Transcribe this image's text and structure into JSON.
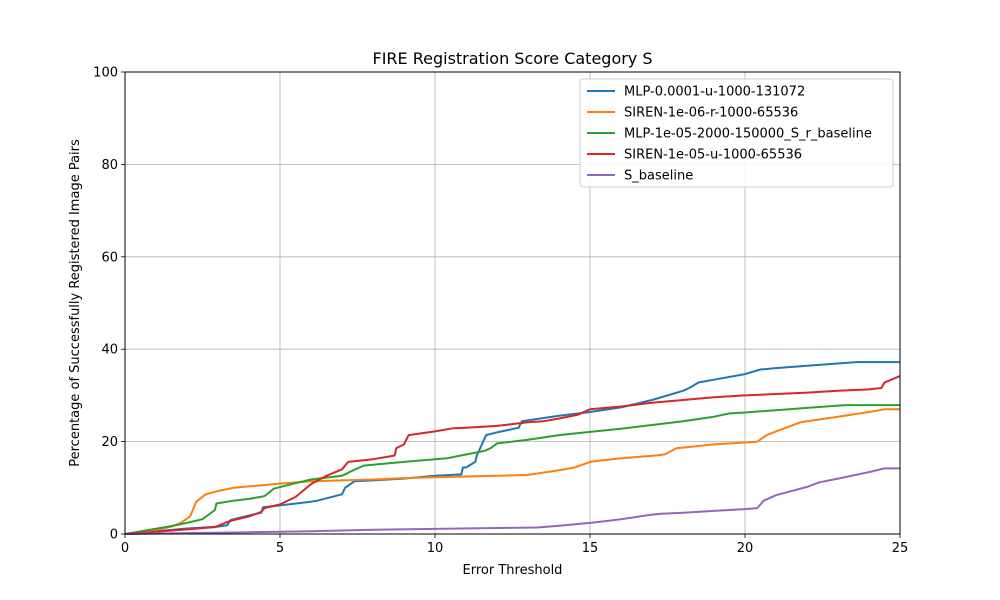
{
  "chart_data": {
    "type": "line",
    "title": "FIRE Registration Score Category S",
    "xlabel": "Error Threshold",
    "ylabel": "Percentage of Successfully Registered Image Pairs",
    "xlim": [
      0,
      25
    ],
    "ylim": [
      0,
      100
    ],
    "xticks": [
      "0",
      "5",
      "10",
      "15",
      "20",
      "25"
    ],
    "yticks": [
      "0",
      "20",
      "40",
      "60",
      "80",
      "100"
    ],
    "grid": true,
    "legend_position": "top-right",
    "series": [
      {
        "name": "MLP-0.0001-u-1000-131072",
        "color": "#1f77b4",
        "points": [
          [
            0,
            0
          ],
          [
            1,
            0.6
          ],
          [
            2,
            1.2
          ],
          [
            3,
            1.6
          ],
          [
            3.3,
            1.9
          ],
          [
            3.4,
            3.0
          ],
          [
            4,
            4.0
          ],
          [
            4.4,
            4.6
          ],
          [
            4.45,
            5.8
          ],
          [
            5,
            6.2
          ],
          [
            6,
            7.0
          ],
          [
            6.2,
            7.2
          ],
          [
            7,
            8.6
          ],
          [
            7.1,
            10.0
          ],
          [
            7.4,
            11.4
          ],
          [
            8,
            11.6
          ],
          [
            9,
            12.0
          ],
          [
            10,
            12.6
          ],
          [
            10.85,
            12.9
          ],
          [
            10.9,
            14.4
          ],
          [
            11,
            14.4
          ],
          [
            11.3,
            15.6
          ],
          [
            11.35,
            17.0
          ],
          [
            11.65,
            21.4
          ],
          [
            12,
            22.0
          ],
          [
            12.7,
            23.0
          ],
          [
            12.8,
            24.4
          ],
          [
            14,
            25.6
          ],
          [
            15,
            26.4
          ],
          [
            16,
            27.4
          ],
          [
            17,
            29.0
          ],
          [
            18,
            31.0
          ],
          [
            18.2,
            31.6
          ],
          [
            18.5,
            32.8
          ],
          [
            19,
            33.4
          ],
          [
            20,
            34.6
          ],
          [
            20.5,
            35.6
          ],
          [
            21,
            35.9
          ],
          [
            22,
            36.4
          ],
          [
            23,
            36.9
          ],
          [
            23.6,
            37.2
          ],
          [
            24,
            37.2
          ],
          [
            25,
            37.2
          ]
        ]
      },
      {
        "name": "SIREN-1e-06-r-1000-65536",
        "color": "#ff7f0e",
        "points": [
          [
            0,
            0
          ],
          [
            0.5,
            0.5
          ],
          [
            1,
            0.9
          ],
          [
            1.5,
            1.6
          ],
          [
            1.8,
            2.4
          ],
          [
            2.1,
            3.8
          ],
          [
            2.3,
            7.0
          ],
          [
            2.6,
            8.6
          ],
          [
            3,
            9.3
          ],
          [
            3.5,
            10.0
          ],
          [
            4,
            10.3
          ],
          [
            5,
            10.9
          ],
          [
            6,
            11.4
          ],
          [
            7,
            11.6
          ],
          [
            8,
            11.8
          ],
          [
            9,
            12.1
          ],
          [
            10,
            12.3
          ],
          [
            12,
            12.6
          ],
          [
            13,
            12.8
          ],
          [
            14,
            13.8
          ],
          [
            14.5,
            14.4
          ],
          [
            15,
            15.6
          ],
          [
            15.2,
            15.8
          ],
          [
            16,
            16.4
          ],
          [
            17,
            16.9
          ],
          [
            17.4,
            17.2
          ],
          [
            17.8,
            18.6
          ],
          [
            18,
            18.7
          ],
          [
            19,
            19.4
          ],
          [
            20,
            19.8
          ],
          [
            20.4,
            20.0
          ],
          [
            20.7,
            21.4
          ],
          [
            21,
            22.2
          ],
          [
            21.8,
            24.2
          ],
          [
            22,
            24.4
          ],
          [
            23,
            25.4
          ],
          [
            24,
            26.4
          ],
          [
            24.5,
            27.0
          ],
          [
            25,
            27.0
          ]
        ]
      },
      {
        "name": "MLP-1e-05-2000-150000_S_r_baseline",
        "color": "#2ca02c",
        "points": [
          [
            0,
            0
          ],
          [
            1.4,
            1.6
          ],
          [
            2,
            2.4
          ],
          [
            2.5,
            3.2
          ],
          [
            2.9,
            5.2
          ],
          [
            2.95,
            6.6
          ],
          [
            3.5,
            7.2
          ],
          [
            4,
            7.6
          ],
          [
            4.5,
            8.2
          ],
          [
            4.8,
            9.8
          ],
          [
            5.5,
            11.0
          ],
          [
            6,
            11.8
          ],
          [
            7,
            12.6
          ],
          [
            7.3,
            13.6
          ],
          [
            7.7,
            14.8
          ],
          [
            8,
            15.0
          ],
          [
            9,
            15.6
          ],
          [
            10,
            16.2
          ],
          [
            10.4,
            16.4
          ],
          [
            11,
            17.2
          ],
          [
            11.6,
            18.0
          ],
          [
            11.8,
            18.6
          ],
          [
            12,
            19.6
          ],
          [
            13,
            20.4
          ],
          [
            14,
            21.4
          ],
          [
            15,
            22.1
          ],
          [
            16,
            22.8
          ],
          [
            17,
            23.6
          ],
          [
            18,
            24.4
          ],
          [
            19,
            25.4
          ],
          [
            19.5,
            26.1
          ],
          [
            20,
            26.3
          ],
          [
            21,
            26.8
          ],
          [
            22,
            27.3
          ],
          [
            23,
            27.8
          ],
          [
            23.3,
            27.9
          ],
          [
            24,
            27.9
          ],
          [
            25,
            27.9
          ]
        ]
      },
      {
        "name": "SIREN-1e-05-u-1000-65536",
        "color": "#d62728",
        "points": [
          [
            0,
            0
          ],
          [
            1,
            0.5
          ],
          [
            2,
            1.0
          ],
          [
            2.9,
            1.5
          ],
          [
            3.3,
            2.6
          ],
          [
            3.5,
            3.0
          ],
          [
            4,
            3.8
          ],
          [
            4.4,
            4.8
          ],
          [
            4.5,
            5.6
          ],
          [
            5,
            6.4
          ],
          [
            5.5,
            8.0
          ],
          [
            6,
            10.8
          ],
          [
            6.5,
            12.6
          ],
          [
            7,
            14.0
          ],
          [
            7.2,
            15.6
          ],
          [
            8,
            16.2
          ],
          [
            8.7,
            17.0
          ],
          [
            8.75,
            18.6
          ],
          [
            9,
            19.4
          ],
          [
            9.15,
            21.4
          ],
          [
            10,
            22.2
          ],
          [
            10.6,
            22.9
          ],
          [
            11,
            23.0
          ],
          [
            12,
            23.4
          ],
          [
            13,
            24.2
          ],
          [
            13.5,
            24.4
          ],
          [
            14,
            25.0
          ],
          [
            14.6,
            25.8
          ],
          [
            15,
            27.0
          ],
          [
            16,
            27.6
          ],
          [
            17,
            28.4
          ],
          [
            18,
            29.0
          ],
          [
            19,
            29.6
          ],
          [
            20,
            30.0
          ],
          [
            21,
            30.3
          ],
          [
            22,
            30.6
          ],
          [
            23,
            31.0
          ],
          [
            24,
            31.3
          ],
          [
            24.4,
            31.6
          ],
          [
            24.5,
            32.8
          ],
          [
            25,
            34.2
          ]
        ]
      },
      {
        "name": "S_baseline",
        "color": "#9467bd",
        "points": [
          [
            0,
            0
          ],
          [
            2,
            0.2
          ],
          [
            4,
            0.4
          ],
          [
            6,
            0.6
          ],
          [
            8,
            0.9
          ],
          [
            10,
            1.1
          ],
          [
            12,
            1.3
          ],
          [
            13.3,
            1.4
          ],
          [
            14,
            1.8
          ],
          [
            15,
            2.4
          ],
          [
            15.5,
            2.8
          ],
          [
            16,
            3.2
          ],
          [
            17,
            4.2
          ],
          [
            17.3,
            4.4
          ],
          [
            18,
            4.6
          ],
          [
            19,
            5.0
          ],
          [
            20,
            5.4
          ],
          [
            20.4,
            5.6
          ],
          [
            20.6,
            7.2
          ],
          [
            21,
            8.4
          ],
          [
            22,
            10.2
          ],
          [
            22.4,
            11.2
          ],
          [
            23,
            12.0
          ],
          [
            24,
            13.4
          ],
          [
            24.5,
            14.2
          ],
          [
            25,
            14.2
          ]
        ]
      }
    ]
  }
}
